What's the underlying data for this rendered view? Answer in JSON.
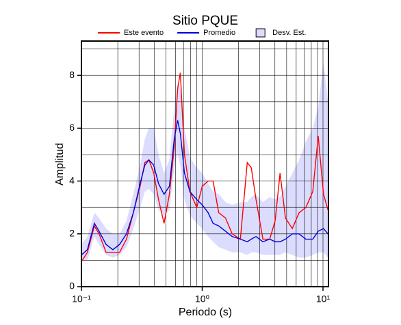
{
  "chart_data": {
    "type": "line",
    "title": "Sitio PQUE",
    "xlabel": "Periodo (s)",
    "ylabel": "Amplitud",
    "xscale": "log",
    "xlim": [
      0.1,
      11.1
    ],
    "ylim": [
      0,
      9.3
    ],
    "xticks": [
      {
        "value": 0.1,
        "label": "10⁻¹"
      },
      {
        "value": 1,
        "label": "10⁰"
      },
      {
        "value": 10,
        "label": "10¹"
      }
    ],
    "xgrid": [
      0.2,
      0.3,
      0.4,
      0.5,
      0.6,
      0.7,
      0.8,
      0.9,
      2,
      3,
      4,
      5,
      6,
      7,
      8,
      9
    ],
    "yticks": [
      0,
      2,
      4,
      6,
      8
    ],
    "ygrid": [
      1,
      3,
      5,
      7,
      9
    ],
    "grid": true,
    "legend": "top",
    "x": [
      0.1,
      0.112,
      0.128,
      0.14,
      0.16,
      0.182,
      0.207,
      0.236,
      0.269,
      0.306,
      0.335,
      0.362,
      0.397,
      0.435,
      0.483,
      0.535,
      0.587,
      0.626,
      0.659,
      0.713,
      0.791,
      0.901,
      1.0,
      1.12,
      1.23,
      1.37,
      1.56,
      1.77,
      2.07,
      2.36,
      2.55,
      2.79,
      3.18,
      3.62,
      4.02,
      4.41,
      4.89,
      5.57,
      6.34,
      7.22,
      8.23,
      9.13,
      10.1,
      11.0
    ],
    "series": [
      {
        "name": "Este evento",
        "color": "#ff0000",
        "values": [
          0.95,
          1.3,
          2.3,
          2.0,
          1.3,
          1.3,
          1.3,
          1.8,
          2.8,
          3.8,
          4.7,
          4.8,
          4.3,
          3.3,
          2.4,
          3.5,
          5.3,
          7.5,
          8.1,
          5.0,
          3.6,
          3.0,
          3.8,
          4.0,
          4.0,
          2.8,
          2.6,
          2.0,
          1.8,
          4.7,
          4.5,
          3.3,
          1.8,
          1.8,
          2.5,
          4.3,
          2.6,
          2.2,
          2.8,
          3.0,
          3.6,
          5.7,
          3.5,
          2.9
        ]
      },
      {
        "name": "Promedio",
        "color": "#0000dd",
        "values": [
          1.2,
          1.4,
          2.4,
          2.1,
          1.6,
          1.4,
          1.6,
          2.0,
          2.8,
          3.9,
          4.6,
          4.8,
          4.6,
          3.9,
          3.5,
          3.8,
          5.6,
          6.3,
          5.8,
          4.3,
          3.6,
          3.3,
          3.1,
          2.8,
          2.4,
          2.3,
          2.1,
          1.9,
          1.8,
          1.7,
          1.8,
          1.9,
          1.7,
          1.8,
          1.7,
          1.7,
          1.8,
          2.0,
          2.0,
          1.8,
          1.8,
          2.1,
          2.2,
          2.0
        ]
      }
    ],
    "band": {
      "name": "Desv. Est.",
      "color": "#dcdcff",
      "upper": [
        1.6,
        1.9,
        2.8,
        2.6,
        2.2,
        2.0,
        2.0,
        2.5,
        3.5,
        4.6,
        5.6,
        6.0,
        6.0,
        5.0,
        4.3,
        4.8,
        6.8,
        7.7,
        7.5,
        6.0,
        4.9,
        4.5,
        4.3,
        3.9,
        3.6,
        3.5,
        3.2,
        3.1,
        3.2,
        3.2,
        3.4,
        3.5,
        3.2,
        3.4,
        3.3,
        3.4,
        3.8,
        4.3,
        4.8,
        5.5,
        6.0,
        6.8,
        8.5,
        7.0
      ],
      "lower": [
        1.0,
        1.0,
        1.9,
        1.6,
        1.2,
        1.1,
        1.2,
        1.5,
        2.2,
        3.0,
        3.6,
        3.7,
        3.5,
        2.9,
        2.7,
        2.9,
        4.5,
        5.0,
        4.6,
        3.3,
        2.7,
        2.4,
        2.2,
        1.9,
        1.7,
        1.5,
        1.4,
        1.3,
        1.3,
        1.2,
        1.3,
        1.3,
        1.2,
        1.2,
        1.2,
        1.2,
        1.3,
        1.2,
        1.1,
        1.1,
        1.2,
        1.3,
        1.3,
        1.1
      ]
    }
  }
}
